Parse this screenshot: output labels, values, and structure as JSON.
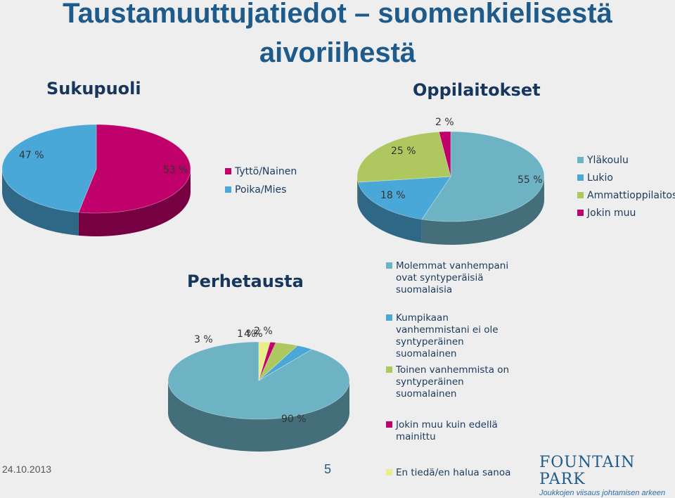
{
  "title_line1": "Taustamuuttujatiedot – suomenkielisestä",
  "title_line2": "aivoriihestä",
  "footer": {
    "date": "24.10.2013",
    "page": "5"
  },
  "logo": {
    "name": "FOUNTAIN PARK",
    "tagline": "Joukkojen viisaus johtamisen arkeen"
  },
  "chart_data": [
    {
      "type": "pie",
      "title": "Sukupuoli",
      "categories": [
        "Tyttö/Nainen",
        "Poika/Mies"
      ],
      "values": [
        53,
        47
      ],
      "labels": [
        "53 %",
        "47 %"
      ],
      "colors": [
        "#c0006a",
        "#4aa8d8"
      ],
      "legend": "right"
    },
    {
      "type": "pie",
      "title": "Oppilaitokset",
      "categories": [
        "Yläkoulu",
        "Lukio",
        "Ammattioppilaitos",
        "Jokin muu"
      ],
      "values": [
        55,
        18,
        25,
        2
      ],
      "labels": [
        "55 %",
        "18 %",
        "25 %",
        "2 %"
      ],
      "colors": [
        "#6db3c4",
        "#4aa8d8",
        "#aec75f",
        "#c0006a"
      ],
      "legend": "right"
    },
    {
      "type": "pie",
      "title": "Perhetausta",
      "categories": [
        "Molemmat vanhempani ovat syntyperäisiä suomalaisia",
        "Kumpikaan vanhemmistani ei ole syntyperäinen suomalainen",
        "Toinen vanhemmista on syntyperäinen suomalainen",
        "Jokin muu kuin edellä mainittu",
        "En tiedä/en halua sanoa"
      ],
      "values": [
        90,
        3,
        4,
        1,
        2
      ],
      "labels": [
        "90 %",
        "3 %",
        "4 %",
        "1 %",
        "2 %"
      ],
      "colors": [
        "#6db3c4",
        "#4aa8d8",
        "#aec75f",
        "#c0006a",
        "#e9ee8a"
      ],
      "legend": "right"
    }
  ]
}
